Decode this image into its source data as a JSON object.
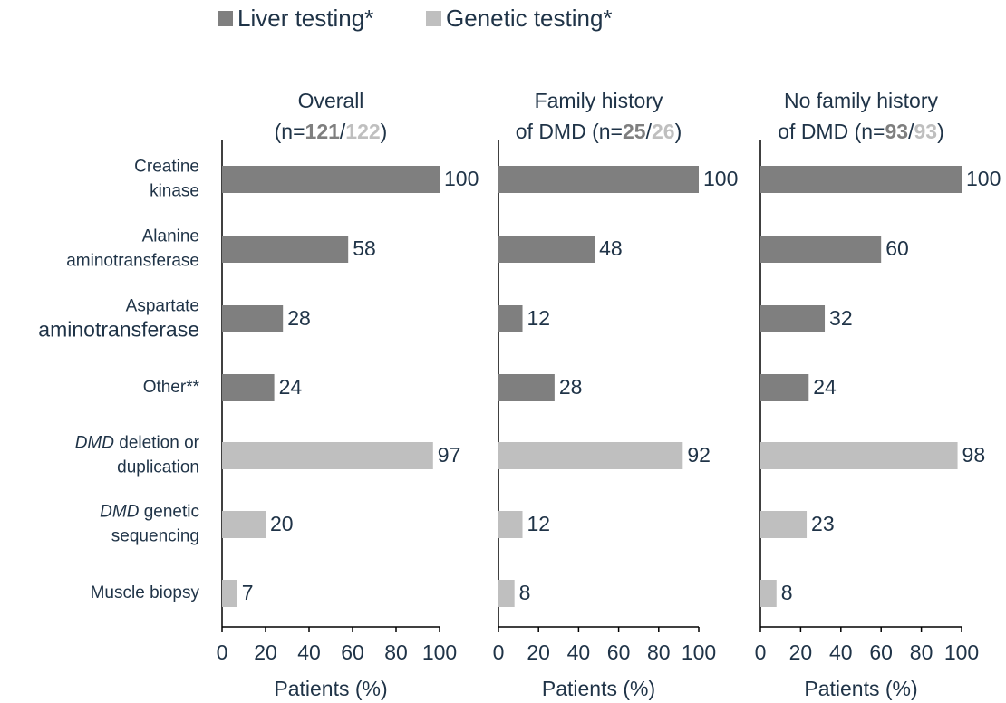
{
  "chart_data": [
    {
      "type": "bar",
      "title": {
        "lines": [
          "Overall"
        ],
        "prefix": "(n=",
        "n": [
          121,
          122
        ],
        "separator": "/",
        "suffix": ")"
      },
      "categories": [
        [
          "Creatine",
          "kinase"
        ],
        [
          "Alanine",
          "aminotransferase"
        ],
        [
          "Aspartate",
          "aminotransferase"
        ],
        [
          "Other**"
        ],
        [
          [
            "DMD",
            " deletion or"
          ],
          "duplication"
        ],
        [
          [
            "DMD",
            " genetic"
          ],
          "sequencing"
        ],
        [
          "Muscle biopsy"
        ]
      ],
      "series": [
        {
          "name": "Liver testing*",
          "color": "#7f7f7f",
          "values": [
            100,
            58,
            28,
            24,
            null,
            null,
            null
          ]
        },
        {
          "name": "Genetic testing*",
          "color": "#bfbfbf",
          "values": [
            null,
            null,
            null,
            null,
            97,
            20,
            7
          ]
        }
      ],
      "xlim": [
        0,
        100
      ],
      "xticks": [
        0,
        20,
        40,
        60,
        80,
        100
      ],
      "xlabel": "Patients (%)"
    },
    {
      "type": "bar",
      "title": {
        "lines": [
          "Family history"
        ],
        "prefix": "of DMD (n=",
        "n": [
          25,
          26
        ],
        "separator": "/",
        "suffix": ")"
      },
      "series": [
        {
          "color": "#7f7f7f",
          "values": [
            100,
            48,
            12,
            28,
            null,
            null,
            null
          ]
        },
        {
          "color": "#bfbfbf",
          "values": [
            null,
            null,
            null,
            null,
            92,
            12,
            8
          ]
        }
      ],
      "xlim": [
        0,
        100
      ],
      "xticks": [
        0,
        20,
        40,
        60,
        80,
        100
      ],
      "xlabel": "Patients (%)"
    },
    {
      "type": "bar",
      "title": {
        "lines": [
          "No family history"
        ],
        "prefix": "of DMD (n=",
        "n": [
          93,
          93
        ],
        "separator": "/",
        "suffix": ")"
      },
      "series": [
        {
          "color": "#7f7f7f",
          "values": [
            100,
            60,
            32,
            24,
            null,
            null,
            null
          ]
        },
        {
          "color": "#bfbfbf",
          "values": [
            null,
            null,
            null,
            null,
            98,
            23,
            8
          ]
        }
      ],
      "xlim": [
        0,
        100
      ],
      "xticks": [
        0,
        20,
        40,
        60,
        80,
        100
      ],
      "xlabel": "Patients (%)"
    }
  ]
}
